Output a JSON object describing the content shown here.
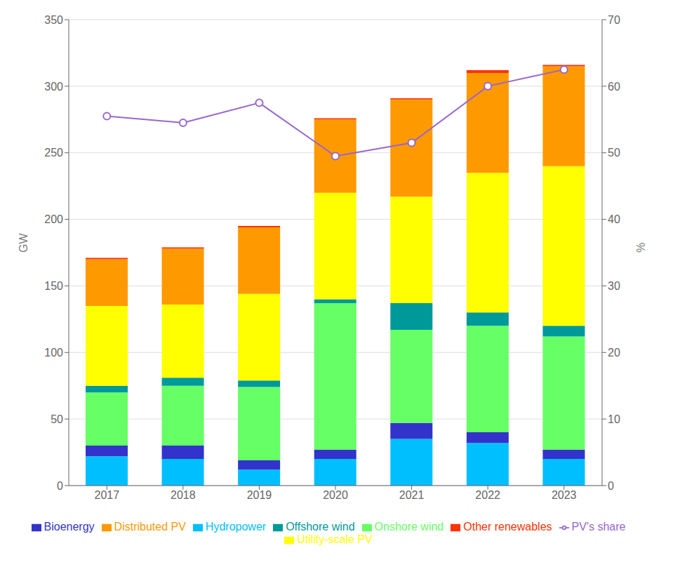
{
  "chart_data": {
    "type": "bar",
    "stacked": true,
    "grid": true,
    "legend": "bottom",
    "categories": [
      "2017",
      "2018",
      "2019",
      "2020",
      "2021",
      "2022",
      "2023"
    ],
    "ylabel": "GW",
    "y2label": "%",
    "ylim": [
      0,
      350
    ],
    "yticks": [
      0,
      50,
      100,
      150,
      200,
      250,
      300,
      350
    ],
    "y2lim": [
      0,
      70
    ],
    "y2ticks": [
      0,
      10,
      20,
      30,
      40,
      50,
      60,
      70
    ],
    "series": [
      {
        "name": "Hydropower",
        "color": "#00BFFF",
        "values": [
          22,
          20,
          12,
          20,
          35,
          32,
          20
        ]
      },
      {
        "name": "Bioenergy",
        "color": "#3333CC",
        "values": [
          8,
          10,
          7,
          7,
          12,
          8,
          7
        ]
      },
      {
        "name": "Onshore wind",
        "color": "#66FF66",
        "values": [
          40,
          45,
          55,
          110,
          70,
          80,
          85
        ]
      },
      {
        "name": "Offshore wind",
        "color": "#009999",
        "values": [
          5,
          6,
          5,
          3,
          20,
          10,
          8
        ]
      },
      {
        "name": "Utility-scale PV",
        "color": "#FFFF00",
        "values": [
          60,
          55,
          65,
          80,
          80,
          105,
          120
        ]
      },
      {
        "name": "Distributed PV",
        "color": "#FF9900",
        "values": [
          35,
          42,
          50,
          55,
          73,
          75,
          75
        ]
      },
      {
        "name": "Other renewables",
        "color": "#FF3300",
        "values": [
          1,
          1,
          1,
          1,
          1,
          2,
          1
        ]
      },
      {
        "name": "PV's share",
        "type": "line",
        "axis": "y2",
        "color": "#9966CC",
        "marker": "circle",
        "values": [
          55.5,
          54.5,
          57.5,
          49.5,
          51.5,
          60.0,
          62.5
        ]
      }
    ]
  }
}
